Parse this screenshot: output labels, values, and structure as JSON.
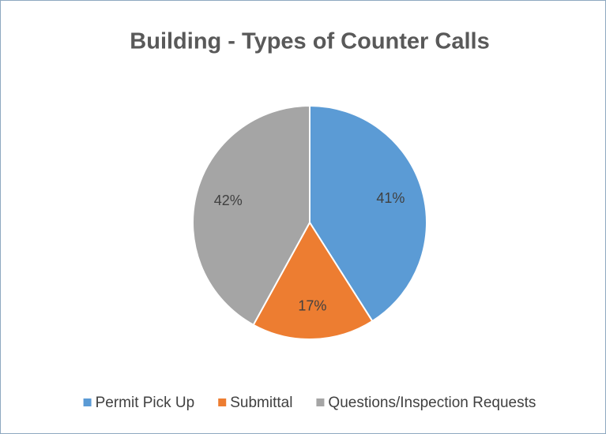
{
  "chart_data": {
    "type": "pie",
    "title": "Building - Types of Counter Calls",
    "categories": [
      "Permit Pick Up",
      "Submittal",
      "Questions/Inspection Requests"
    ],
    "values": [
      41,
      17,
      42
    ],
    "value_labels": [
      "41%",
      "17%",
      "42%"
    ],
    "colors": [
      "#5b9bd5",
      "#ed7d31",
      "#a5a5a5"
    ],
    "legend": "bottom"
  }
}
